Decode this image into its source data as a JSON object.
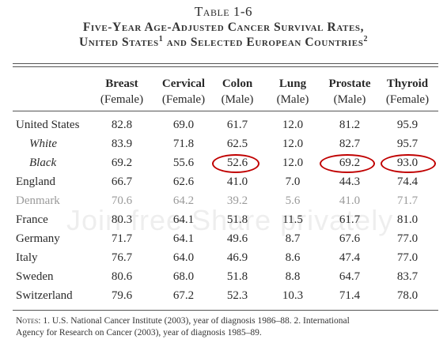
{
  "table_number": "Table 1-6",
  "title_line1": "Five-Year Age-Adjusted Cancer Survival Rates,",
  "title_line2_prefix": "United States",
  "title_line2_sup1": "1",
  "title_line2_mid": " and Selected European Countries",
  "title_line2_sup2": "2",
  "columns": [
    {
      "name": "Breast",
      "sub": "(Female)"
    },
    {
      "name": "Cervical",
      "sub": "(Female)"
    },
    {
      "name": "Colon",
      "sub": "(Male)"
    },
    {
      "name": "Lung",
      "sub": "(Male)"
    },
    {
      "name": "Prostate",
      "sub": "(Male)"
    },
    {
      "name": "Thyroid",
      "sub": "(Female)"
    }
  ],
  "rows": [
    {
      "country": "United States",
      "values": [
        "82.8",
        "69.0",
        "61.7",
        "12.0",
        "81.2",
        "95.9"
      ]
    },
    {
      "country": "White",
      "values": [
        "83.9",
        "71.8",
        "62.5",
        "12.0",
        "82.7",
        "95.7"
      ]
    },
    {
      "country": "Black",
      "values": [
        "69.2",
        "55.6",
        "52.6",
        "12.0",
        "69.2",
        "93.0"
      ]
    },
    {
      "country": "England",
      "values": [
        "66.7",
        "62.6",
        "41.0",
        "7.0",
        "44.3",
        "74.4"
      ]
    },
    {
      "country": "Denmark",
      "values": [
        "70.6",
        "64.2",
        "39.2",
        "5.6",
        "41.0",
        "71.7"
      ]
    },
    {
      "country": "France",
      "values": [
        "80.3",
        "64.1",
        "51.8",
        "11.5",
        "61.7",
        "81.0"
      ]
    },
    {
      "country": "Germany",
      "values": [
        "71.7",
        "64.1",
        "49.6",
        "8.7",
        "67.6",
        "77.0"
      ]
    },
    {
      "country": "Italy",
      "values": [
        "76.7",
        "64.0",
        "46.9",
        "8.6",
        "47.4",
        "77.0"
      ]
    },
    {
      "country": "Sweden",
      "values": [
        "80.6",
        "68.0",
        "51.8",
        "8.8",
        "64.7",
        "83.7"
      ]
    },
    {
      "country": "Switzerland",
      "values": [
        "79.6",
        "67.2",
        "52.3",
        "10.3",
        "71.4",
        "78.0"
      ]
    }
  ],
  "notes_label": "Notes:",
  "notes_line1": " 1. U.S. National Cancer Institute (2003), year of diagnosis 1986–88. 2. International",
  "notes_line2": "Agency for Research on Cancer (2003), year of diagnosis 1985–89.",
  "watermark": "Join free Share privately",
  "colors": {
    "highlight_ring": "#c00000",
    "text": "#2a2a2a",
    "faded_row": "#9a9a9a"
  }
}
